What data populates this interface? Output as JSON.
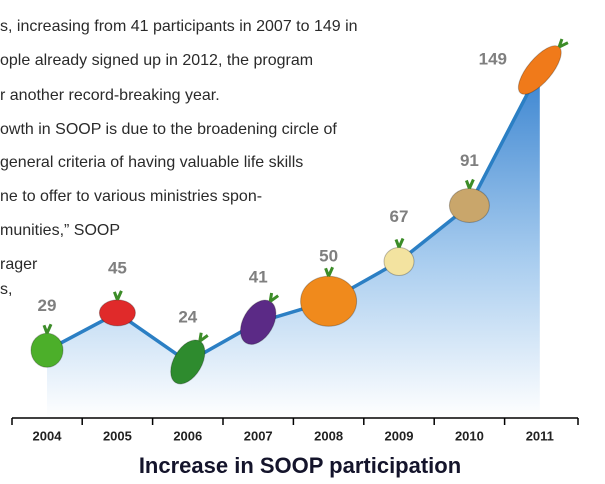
{
  "body_text": [
    "s, increasing from 41 participants in 2007 to 149 in",
    "ople already signed up in 2012, the program",
    "r another record-breaking year.",
    "owth in SOOP is due to the broadening circle of",
    "general criteria of having valuable life skills",
    "ne to offer to various ministries spon-",
    "munities,” SOOP",
    "rager",
    "s,"
  ],
  "chart_data": {
    "type": "line",
    "title": "Increase in SOOP participation",
    "categories": [
      "2004",
      "2005",
      "2006",
      "2007",
      "2008",
      "2009",
      "2010",
      "2011"
    ],
    "values": [
      29,
      45,
      24,
      41,
      50,
      67,
      91,
      149
    ],
    "color": "#2b7fc4",
    "marker_colors": [
      "#4caf2a",
      "#e02a2a",
      "#2e8b2e",
      "#5b2a86",
      "#f08a1c",
      "#f3e3a0",
      "#c9a66b",
      "#f07a1a"
    ]
  }
}
